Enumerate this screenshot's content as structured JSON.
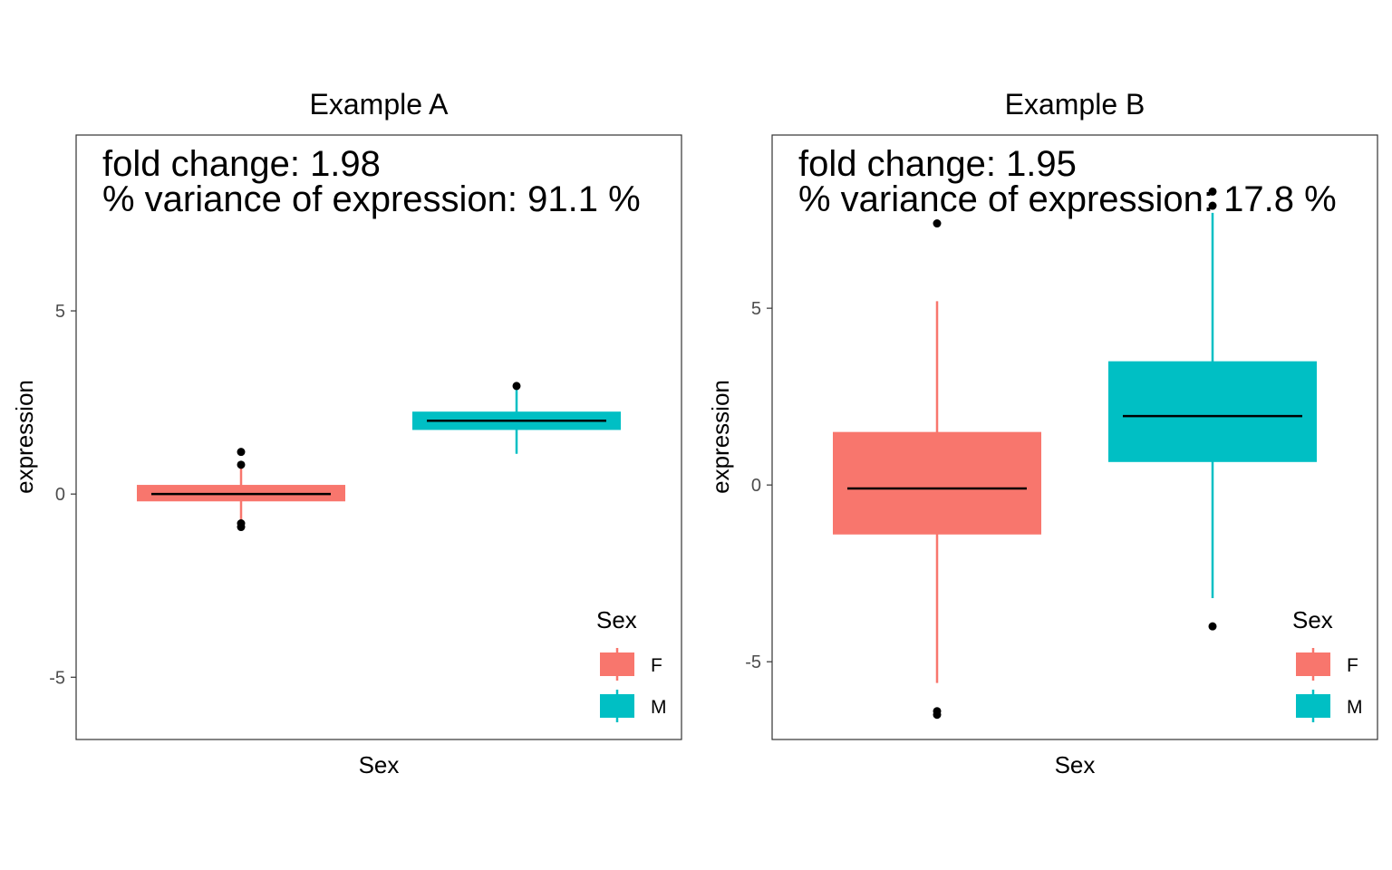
{
  "chart_data": [
    {
      "type": "box",
      "title": "Example A",
      "xlabel": "Sex",
      "ylabel": "expression",
      "annotations": [
        "fold change: 1.98",
        "% variance of expression: 91.1 %"
      ],
      "ylim": [
        -6.7,
        9.8
      ],
      "yticks": [
        {
          "value": -5,
          "label": "-5"
        },
        {
          "value": 0,
          "label": "0"
        },
        {
          "value": 5,
          "label": "5"
        }
      ],
      "grid": false,
      "legend": {
        "title": "Sex",
        "position": "bottom-right"
      },
      "series": [
        {
          "name": "F",
          "color": "#F8766D",
          "lower_whisker": -0.7,
          "q1": -0.2,
          "median": 0.0,
          "q3": 0.25,
          "upper_whisker": 0.7,
          "outliers": [
            1.15,
            0.8,
            -0.8,
            -0.9
          ]
        },
        {
          "name": "M",
          "color": "#00BFC4",
          "lower_whisker": 1.1,
          "q1": 1.75,
          "median": 2.0,
          "q3": 2.25,
          "upper_whisker": 2.85,
          "outliers": [
            2.95
          ]
        }
      ]
    },
    {
      "type": "box",
      "title": "Example B",
      "xlabel": "Sex",
      "ylabel": "expression",
      "annotations": [
        "fold change: 1.95",
        "% variance of expression: 17.8 %"
      ],
      "ylim": [
        -7.2,
        9.9
      ],
      "yticks": [
        {
          "value": -5,
          "label": "-5"
        },
        {
          "value": 0,
          "label": "0"
        },
        {
          "value": 5,
          "label": "5"
        }
      ],
      "grid": false,
      "legend": {
        "title": "Sex",
        "position": "bottom-right"
      },
      "series": [
        {
          "name": "F",
          "color": "#F8766D",
          "lower_whisker": -5.6,
          "q1": -1.4,
          "median": -0.1,
          "q3": 1.5,
          "upper_whisker": 5.2,
          "outliers": [
            7.4,
            -6.4,
            -6.5
          ]
        },
        {
          "name": "M",
          "color": "#00BFC4",
          "lower_whisker": -3.2,
          "q1": 0.65,
          "median": 1.95,
          "q3": 3.5,
          "upper_whisker": 7.7,
          "outliers": [
            8.3,
            7.9,
            -4.0
          ]
        }
      ]
    }
  ]
}
